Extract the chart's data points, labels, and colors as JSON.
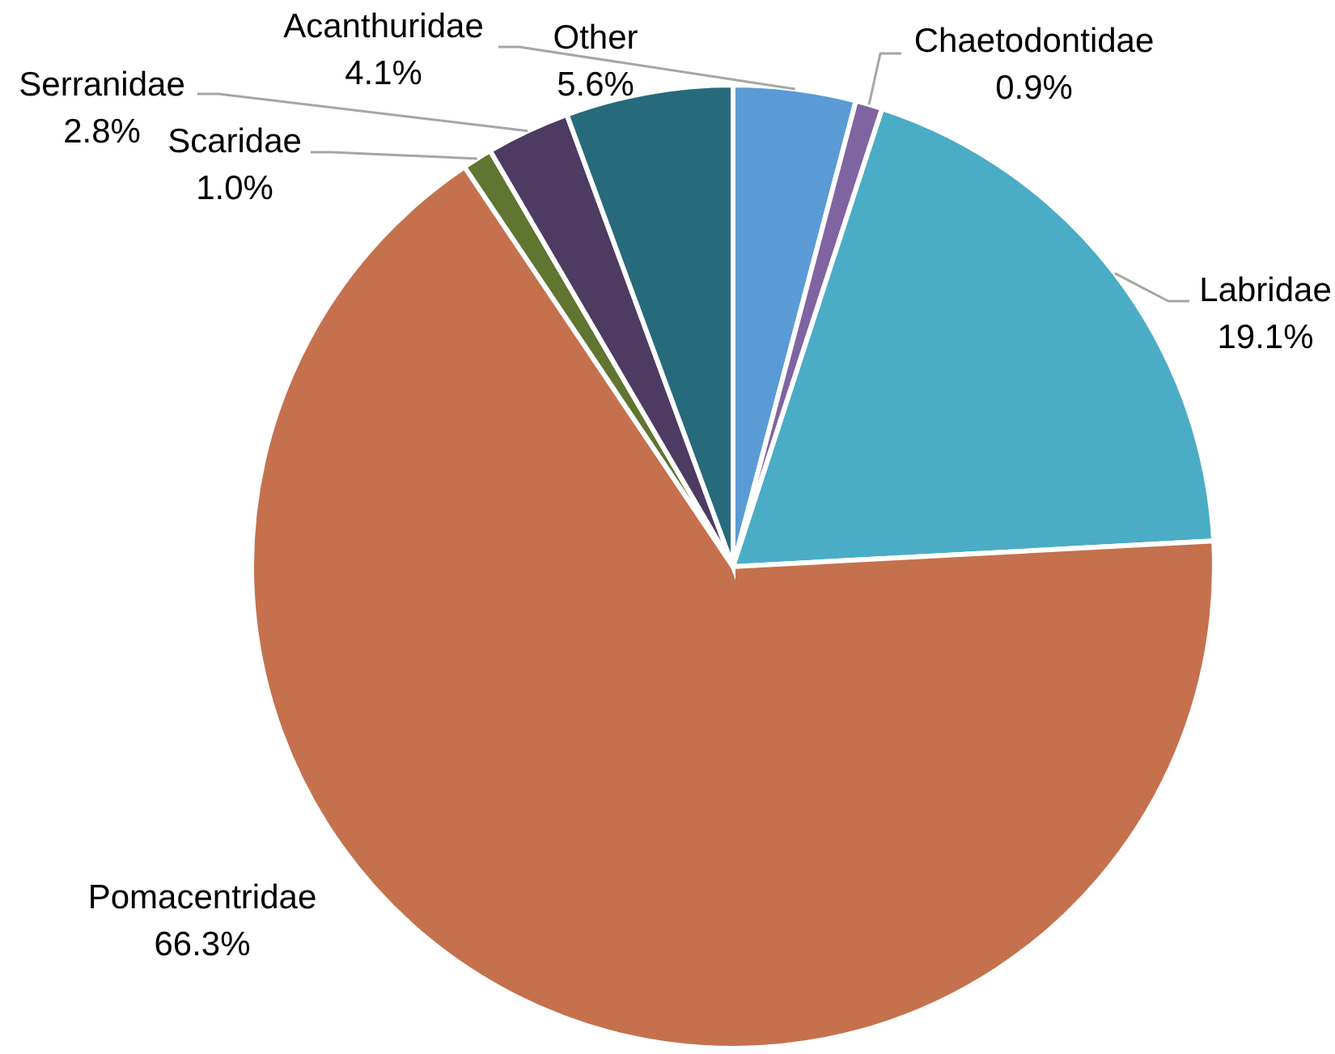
{
  "chart_data": {
    "type": "pie",
    "categories": [
      "Acanthuridae",
      "Chaetodontidae",
      "Labridae",
      "Pomacentridae",
      "Scaridae",
      "Serranidae",
      "Other"
    ],
    "values": [
      4.1,
      0.9,
      19.1,
      66.3,
      1.0,
      2.8,
      5.6
    ],
    "colors": [
      "#5b9bd5",
      "#8064a2",
      "#4bacc6",
      "#c5714d",
      "#5f7530",
      "#4d3b62",
      "#276a7c"
    ],
    "value_labels": [
      "4.1%",
      "0.9%",
      "19.1%",
      "66.3%",
      "1.0%",
      "2.8%",
      "5.6%"
    ]
  }
}
